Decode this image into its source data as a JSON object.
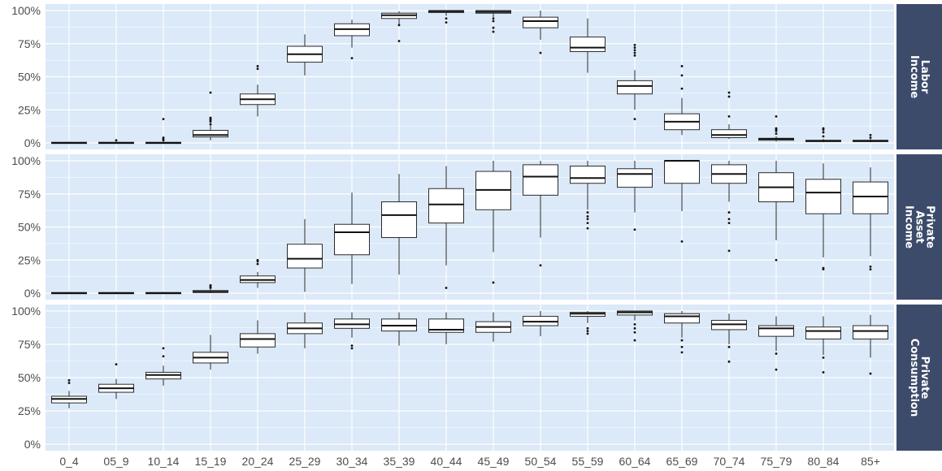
{
  "colors": {
    "panel_background": "#dbe9f8",
    "grid": "#ffffff",
    "strip_background": "#3d4b6b",
    "strip_text": "#ffffff",
    "box_fill": "#ffffff",
    "box_line": "#2b2b2b",
    "tick_text": "#4d4d4d"
  },
  "chart_data": {
    "type": "boxplot",
    "categories": [
      "0_4",
      "05_9",
      "10_14",
      "15_19",
      "20_24",
      "25_29",
      "30_34",
      "35_39",
      "40_44",
      "45_49",
      "50_54",
      "55_59",
      "60_64",
      "65_69",
      "70_74",
      "75_79",
      "80_84",
      "85+"
    ],
    "y_tick_labels": [
      "0%",
      "25%",
      "50%",
      "75%",
      "100%"
    ],
    "ylim": [
      0,
      1
    ],
    "grid": true,
    "facets": [
      {
        "strip_label": [
          "Labor",
          "Income"
        ],
        "boxes": [
          {
            "min": 0.0,
            "q1": 0.0,
            "median": 0.0,
            "q3": 0.005,
            "max": 0.01,
            "outliers": []
          },
          {
            "min": 0.0,
            "q1": 0.0,
            "median": 0.0,
            "q3": 0.005,
            "max": 0.01,
            "outliers": [
              0.02
            ]
          },
          {
            "min": 0.0,
            "q1": 0.0,
            "median": 0.0,
            "q3": 0.005,
            "max": 0.01,
            "outliers": [
              0.02,
              0.03,
              0.04,
              0.18
            ]
          },
          {
            "min": 0.02,
            "q1": 0.045,
            "median": 0.06,
            "q3": 0.095,
            "max": 0.13,
            "outliers": [
              0.14,
              0.16,
              0.17,
              0.18,
              0.19,
              0.38
            ]
          },
          {
            "min": 0.2,
            "q1": 0.29,
            "median": 0.33,
            "q3": 0.37,
            "max": 0.44,
            "outliers": [
              0.56,
              0.58
            ]
          },
          {
            "min": 0.51,
            "q1": 0.61,
            "median": 0.67,
            "q3": 0.73,
            "max": 0.82,
            "outliers": []
          },
          {
            "min": 0.72,
            "q1": 0.81,
            "median": 0.86,
            "q3": 0.9,
            "max": 0.93,
            "outliers": [
              0.64
            ]
          },
          {
            "min": 0.89,
            "q1": 0.94,
            "median": 0.965,
            "q3": 0.98,
            "max": 0.995,
            "outliers": [
              0.77,
              0.89
            ]
          },
          {
            "min": 0.96,
            "q1": 0.985,
            "median": 0.995,
            "q3": 1.0,
            "max": 1.0,
            "outliers": [
              0.91,
              0.94
            ]
          },
          {
            "min": 0.95,
            "q1": 0.98,
            "median": 0.99,
            "q3": 1.0,
            "max": 1.0,
            "outliers": [
              0.84,
              0.87,
              0.92,
              0.94
            ]
          },
          {
            "min": 0.78,
            "q1": 0.87,
            "median": 0.92,
            "q3": 0.95,
            "max": 1.0,
            "outliers": [
              0.68
            ]
          },
          {
            "min": 0.53,
            "q1": 0.69,
            "median": 0.72,
            "q3": 0.8,
            "max": 0.94,
            "outliers": []
          },
          {
            "min": 0.25,
            "q1": 0.37,
            "median": 0.43,
            "q3": 0.47,
            "max": 0.55,
            "outliers": [
              0.18,
              0.66,
              0.68,
              0.7,
              0.72,
              0.74
            ]
          },
          {
            "min": 0.06,
            "q1": 0.1,
            "median": 0.16,
            "q3": 0.22,
            "max": 0.34,
            "outliers": [
              0.41,
              0.51,
              0.58
            ]
          },
          {
            "min": 0.03,
            "q1": 0.04,
            "median": 0.06,
            "q3": 0.1,
            "max": 0.14,
            "outliers": [
              0.2,
              0.35,
              0.38
            ]
          },
          {
            "min": 0.01,
            "q1": 0.02,
            "median": 0.03,
            "q3": 0.035,
            "max": 0.05,
            "outliers": [
              0.07,
              0.09,
              0.1,
              0.11,
              0.2
            ]
          },
          {
            "min": 0.005,
            "q1": 0.01,
            "median": 0.015,
            "q3": 0.02,
            "max": 0.03,
            "outliers": [
              0.05,
              0.08,
              0.1,
              0.11
            ]
          },
          {
            "min": 0.005,
            "q1": 0.01,
            "median": 0.015,
            "q3": 0.02,
            "max": 0.03,
            "outliers": [
              0.04,
              0.06
            ]
          }
        ]
      },
      {
        "strip_label": [
          "Private",
          "Asset",
          "Income"
        ],
        "boxes": [
          {
            "min": 0.0,
            "q1": 0.0,
            "median": 0.0,
            "q3": 0.005,
            "max": 0.01,
            "outliers": []
          },
          {
            "min": 0.0,
            "q1": 0.0,
            "median": 0.0,
            "q3": 0.005,
            "max": 0.01,
            "outliers": []
          },
          {
            "min": 0.0,
            "q1": 0.0,
            "median": 0.0,
            "q3": 0.005,
            "max": 0.01,
            "outliers": []
          },
          {
            "min": 0.0,
            "q1": 0.005,
            "median": 0.01,
            "q3": 0.02,
            "max": 0.03,
            "outliers": [
              0.04,
              0.05,
              0.06
            ]
          },
          {
            "min": 0.04,
            "q1": 0.08,
            "median": 0.1,
            "q3": 0.13,
            "max": 0.16,
            "outliers": [
              0.22,
              0.24,
              0.25
            ]
          },
          {
            "min": 0.01,
            "q1": 0.19,
            "median": 0.26,
            "q3": 0.37,
            "max": 0.56,
            "outliers": []
          },
          {
            "min": 0.07,
            "q1": 0.29,
            "median": 0.46,
            "q3": 0.52,
            "max": 0.76,
            "outliers": []
          },
          {
            "min": 0.14,
            "q1": 0.42,
            "median": 0.59,
            "q3": 0.69,
            "max": 0.9,
            "outliers": []
          },
          {
            "min": 0.21,
            "q1": 0.53,
            "median": 0.67,
            "q3": 0.79,
            "max": 0.96,
            "outliers": [
              0.04
            ]
          },
          {
            "min": 0.31,
            "q1": 0.63,
            "median": 0.78,
            "q3": 0.92,
            "max": 1.0,
            "outliers": [
              0.08
            ]
          },
          {
            "min": 0.42,
            "q1": 0.74,
            "median": 0.88,
            "q3": 0.97,
            "max": 1.0,
            "outliers": [
              0.21
            ]
          },
          {
            "min": 0.63,
            "q1": 0.83,
            "median": 0.87,
            "q3": 0.96,
            "max": 1.0,
            "outliers": [
              0.49,
              0.53,
              0.56,
              0.58,
              0.61
            ]
          },
          {
            "min": 0.61,
            "q1": 0.8,
            "median": 0.9,
            "q3": 0.94,
            "max": 1.0,
            "outliers": [
              0.48
            ]
          },
          {
            "min": 0.62,
            "q1": 0.83,
            "median": 1.0,
            "q3": 1.0,
            "max": 1.0,
            "outliers": [
              0.39
            ]
          },
          {
            "min": 0.69,
            "q1": 0.83,
            "median": 0.9,
            "q3": 0.97,
            "max": 1.0,
            "outliers": [
              0.32,
              0.53,
              0.56,
              0.61
            ]
          },
          {
            "min": 0.4,
            "q1": 0.69,
            "median": 0.8,
            "q3": 0.91,
            "max": 1.0,
            "outliers": [
              0.25
            ]
          },
          {
            "min": 0.27,
            "q1": 0.6,
            "median": 0.76,
            "q3": 0.86,
            "max": 0.98,
            "outliers": [
              0.18,
              0.19
            ]
          },
          {
            "min": 0.28,
            "q1": 0.6,
            "median": 0.73,
            "q3": 0.84,
            "max": 0.95,
            "outliers": [
              0.18,
              0.2
            ]
          }
        ]
      },
      {
        "strip_label": [
          "Private",
          "Consumption"
        ],
        "boxes": [
          {
            "min": 0.27,
            "q1": 0.31,
            "median": 0.34,
            "q3": 0.36,
            "max": 0.4,
            "outliers": [
              0.46,
              0.48
            ]
          },
          {
            "min": 0.34,
            "q1": 0.39,
            "median": 0.42,
            "q3": 0.45,
            "max": 0.49,
            "outliers": [
              0.6
            ]
          },
          {
            "min": 0.44,
            "q1": 0.49,
            "median": 0.52,
            "q3": 0.54,
            "max": 0.59,
            "outliers": [
              0.66,
              0.72
            ]
          },
          {
            "min": 0.56,
            "q1": 0.61,
            "median": 0.65,
            "q3": 0.69,
            "max": 0.82,
            "outliers": []
          },
          {
            "min": 0.68,
            "q1": 0.73,
            "median": 0.79,
            "q3": 0.83,
            "max": 0.93,
            "outliers": []
          },
          {
            "min": 0.72,
            "q1": 0.83,
            "median": 0.87,
            "q3": 0.91,
            "max": 0.99,
            "outliers": []
          },
          {
            "min": 0.8,
            "q1": 0.87,
            "median": 0.9,
            "q3": 0.94,
            "max": 0.99,
            "outliers": [
              0.72,
              0.74
            ]
          },
          {
            "min": 0.74,
            "q1": 0.85,
            "median": 0.89,
            "q3": 0.94,
            "max": 0.99,
            "outliers": []
          },
          {
            "min": 0.75,
            "q1": 0.84,
            "median": 0.86,
            "q3": 0.94,
            "max": 0.99,
            "outliers": []
          },
          {
            "min": 0.77,
            "q1": 0.84,
            "median": 0.88,
            "q3": 0.92,
            "max": 0.99,
            "outliers": []
          },
          {
            "min": 0.81,
            "q1": 0.89,
            "median": 0.92,
            "q3": 0.96,
            "max": 1.0,
            "outliers": []
          },
          {
            "min": 0.91,
            "q1": 0.96,
            "median": 0.98,
            "q3": 0.99,
            "max": 1.0,
            "outliers": [
              0.83,
              0.85,
              0.87
            ]
          },
          {
            "min": 0.93,
            "q1": 0.97,
            "median": 0.99,
            "q3": 1.0,
            "max": 1.0,
            "outliers": [
              0.78,
              0.84,
              0.87,
              0.9
            ]
          },
          {
            "min": 0.8,
            "q1": 0.91,
            "median": 0.96,
            "q3": 0.98,
            "max": 1.0,
            "outliers": [
              0.69,
              0.73,
              0.78
            ]
          },
          {
            "min": 0.75,
            "q1": 0.86,
            "median": 0.9,
            "q3": 0.93,
            "max": 0.98,
            "outliers": [
              0.62,
              0.73
            ]
          },
          {
            "min": 0.7,
            "q1": 0.81,
            "median": 0.87,
            "q3": 0.89,
            "max": 0.96,
            "outliers": [
              0.56,
              0.68
            ]
          },
          {
            "min": 0.67,
            "q1": 0.79,
            "median": 0.85,
            "q3": 0.88,
            "max": 0.96,
            "outliers": [
              0.54,
              0.65
            ]
          },
          {
            "min": 0.65,
            "q1": 0.79,
            "median": 0.85,
            "q3": 0.89,
            "max": 0.97,
            "outliers": [
              0.53
            ]
          }
        ]
      }
    ]
  }
}
